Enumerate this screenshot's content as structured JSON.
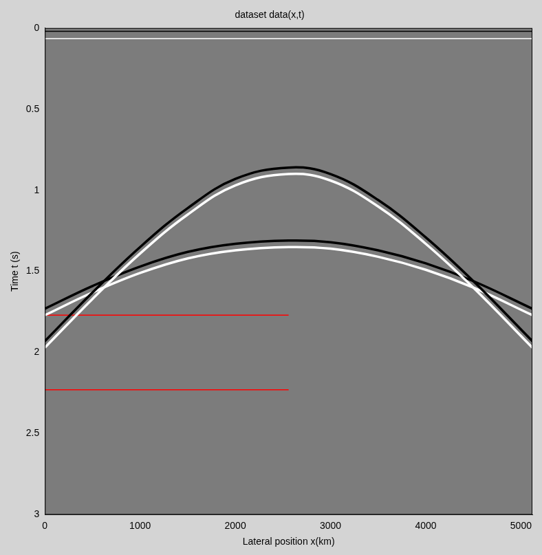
{
  "chart_data": {
    "type": "line",
    "title": "dataset data(x,t)",
    "x_label": "Lateral position x(km)",
    "y_label": "Time t (s)",
    "xlim": [
      0,
      5120
    ],
    "xticks": [
      0,
      1000,
      2000,
      3000,
      4000,
      5000
    ],
    "ylim": [
      0,
      3
    ],
    "yticks": [
      0,
      0.5,
      1,
      1.5,
      2,
      2.5,
      3
    ],
    "y_reversed": true,
    "grid": false,
    "series": [
      {
        "color": "#000000",
        "x": [
          0,
          5120
        ],
        "values": [
          0.02,
          0.02
        ]
      },
      {
        "color": "#ffffff",
        "x": [
          0,
          5120
        ],
        "values": [
          0.065,
          0.065
        ]
      },
      {
        "color": "#000000",
        "x": [
          0,
          500,
          1000,
          1500,
          2000,
          2560,
          3000,
          3500,
          4000,
          4500,
          5120
        ],
        "values": [
          1.93,
          1.63,
          1.35,
          1.11,
          0.93,
          0.86,
          0.9,
          1.06,
          1.29,
          1.56,
          1.93
        ]
      },
      {
        "color": "#ffffff",
        "x": [
          0,
          500,
          1000,
          1500,
          2000,
          2560,
          3000,
          3500,
          4000,
          4500,
          5120
        ],
        "values": [
          1.97,
          1.67,
          1.39,
          1.15,
          0.97,
          0.9,
          0.94,
          1.1,
          1.33,
          1.6,
          1.97
        ]
      },
      {
        "color": "#000000",
        "x": [
          0,
          500,
          1000,
          1500,
          2000,
          2560,
          3000,
          3500,
          4000,
          4500,
          5120
        ],
        "values": [
          1.73,
          1.59,
          1.47,
          1.38,
          1.33,
          1.31,
          1.32,
          1.37,
          1.45,
          1.56,
          1.73
        ]
      },
      {
        "color": "#ffffff",
        "x": [
          0,
          500,
          1000,
          1500,
          2000,
          2560,
          3000,
          3500,
          4000,
          4500,
          5120
        ],
        "values": [
          1.77,
          1.63,
          1.51,
          1.42,
          1.37,
          1.35,
          1.36,
          1.41,
          1.49,
          1.6,
          1.77
        ]
      },
      {
        "color": "#ff0000",
        "x": [
          0,
          2560
        ],
        "values": [
          1.77,
          1.77
        ]
      },
      {
        "color": "#ff0000",
        "x": [
          0,
          2560
        ],
        "values": [
          2.23,
          2.23
        ]
      }
    ]
  }
}
